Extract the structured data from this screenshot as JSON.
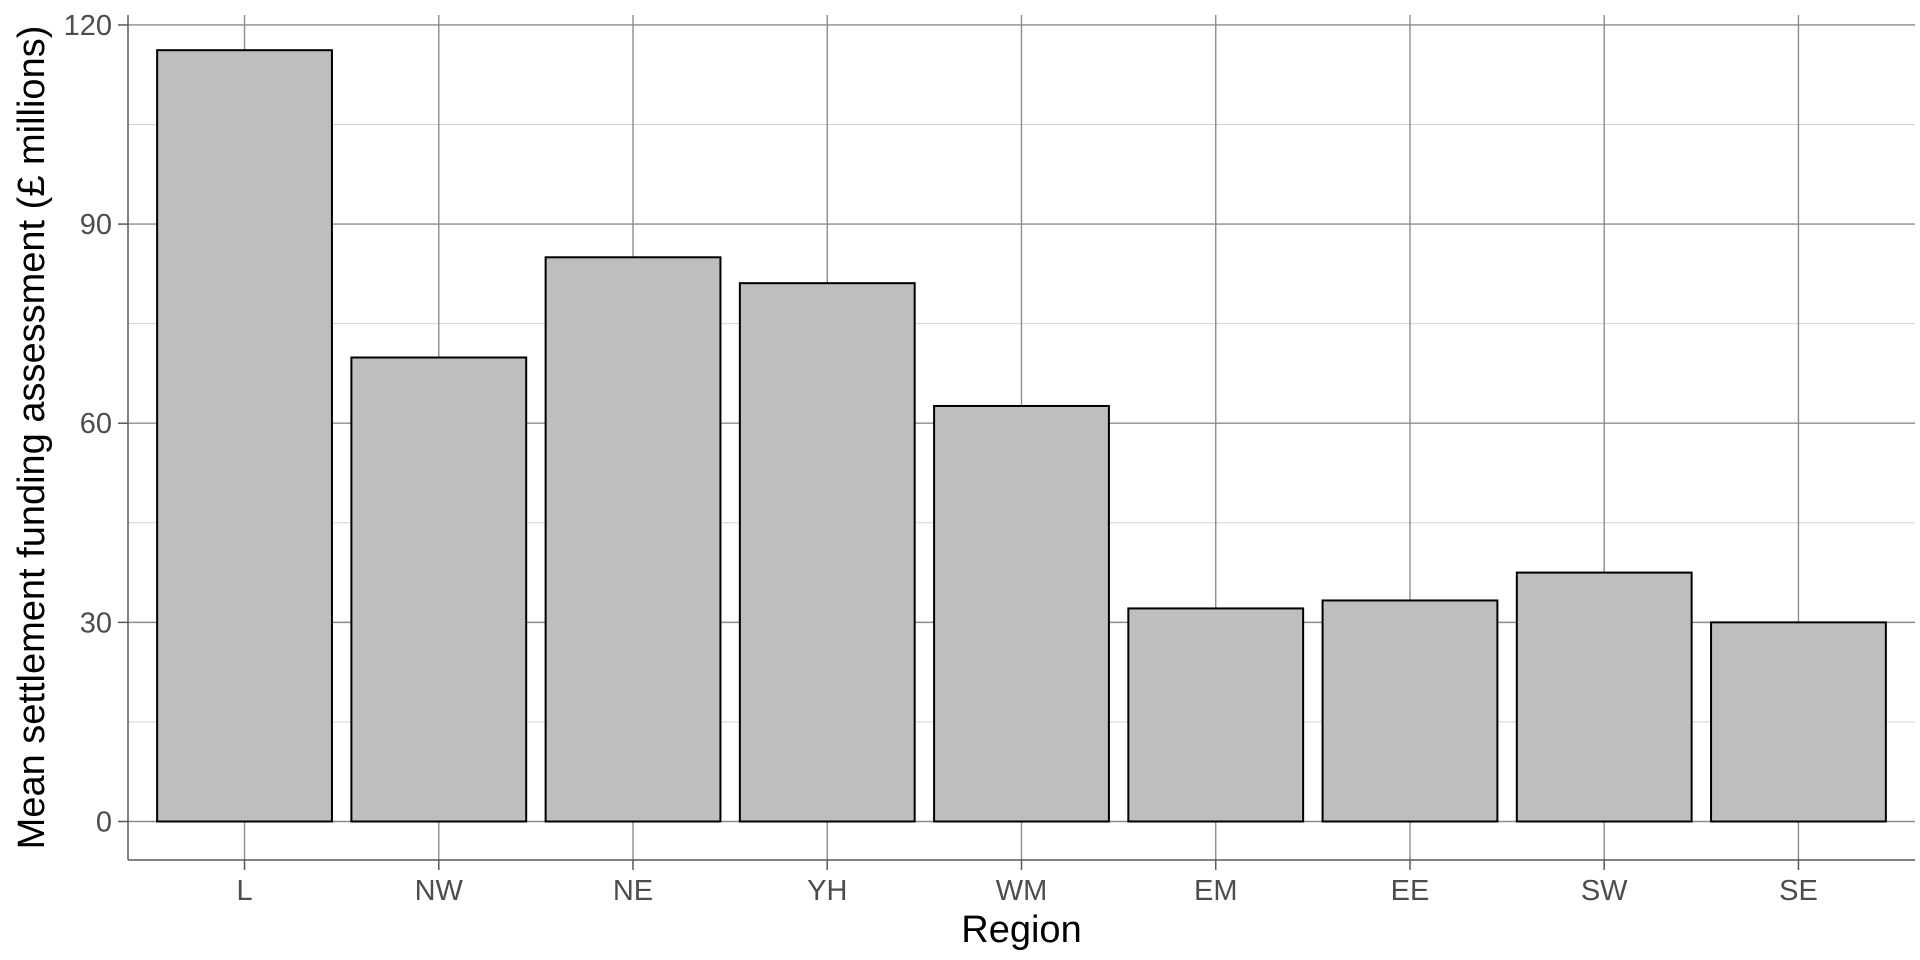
{
  "chart_data": {
    "type": "bar",
    "title": "",
    "xlabel": "Region",
    "ylabel": "Mean settlement funding assessment (£ millions)",
    "categories": [
      "L",
      "NW",
      "NE",
      "YH",
      "WM",
      "EM",
      "EE",
      "SW",
      "SE"
    ],
    "values": [
      116.2,
      69.9,
      85.0,
      81.1,
      62.6,
      32.1,
      33.3,
      37.5,
      30.0
    ],
    "ylim": [
      -5.8,
      121.5
    ],
    "yticks": [
      "0",
      "30",
      "60",
      "90",
      "120"
    ],
    "grid": true,
    "legend": "none",
    "colors": {
      "bar_fill": "#bebebe",
      "bar_stroke": "#000000",
      "grid_major": "#8c8c8c",
      "grid_minor": "#d3d3d3",
      "axis": "#595959"
    }
  }
}
